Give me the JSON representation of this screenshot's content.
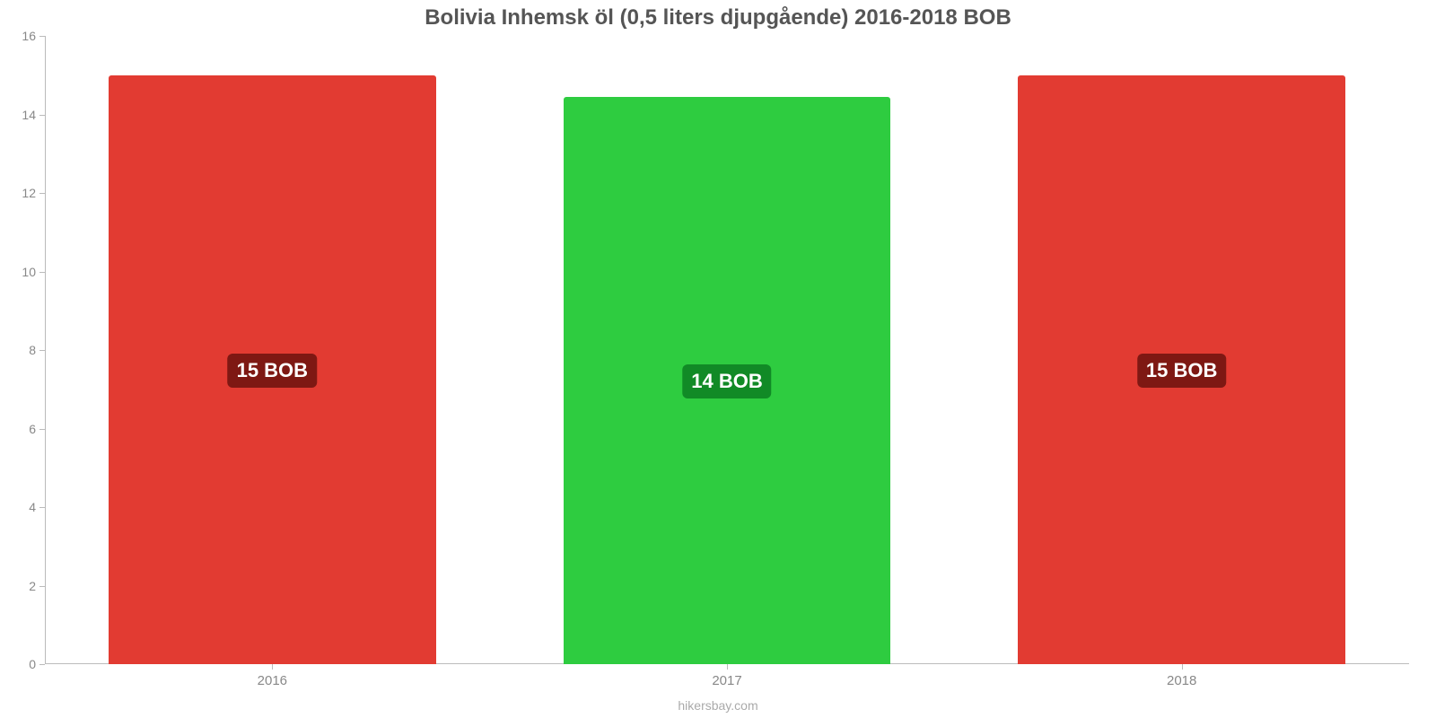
{
  "chart": {
    "type": "bar",
    "title": "Bolivia Inhemsk öl (0,5 liters djupgående) 2016-2018 BOB",
    "title_fontsize": 24,
    "title_color": "#555555",
    "attribution": "hikersbay.com",
    "attribution_color": "#aaaaaa",
    "background_color": "#ffffff",
    "axis_color": "#bbbbbb",
    "tick_label_color": "#888888",
    "tick_label_fontsize": 14,
    "ylim": [
      0,
      16
    ],
    "ytick_step": 2,
    "yticks": [
      0,
      2,
      4,
      6,
      8,
      10,
      12,
      14,
      16
    ],
    "bar_width_pct": 72,
    "badge_fontsize": 22,
    "badge_text_color": "#ffffff",
    "bars": [
      {
        "category": "2016",
        "value": 15.0,
        "display": "15 BOB",
        "color": "#e23b32",
        "badge_bg": "#7e1813"
      },
      {
        "category": "2017",
        "value": 14.45,
        "display": "14 BOB",
        "color": "#2ecc40",
        "badge_bg": "#118a26"
      },
      {
        "category": "2018",
        "value": 15.0,
        "display": "15 BOB",
        "color": "#e23b32",
        "badge_bg": "#7e1813"
      }
    ]
  }
}
